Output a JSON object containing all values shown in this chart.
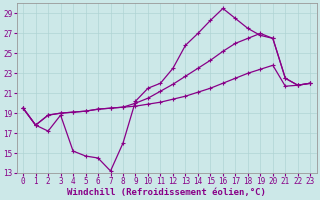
{
  "bg_color": "#cce8e8",
  "grid_color": "#b0d4d4",
  "line_color": "#880088",
  "xlabel": "Windchill (Refroidissement éolien,°C)",
  "xlabel_fontsize": 6.5,
  "tick_fontsize": 5.5,
  "xlim": [
    -0.5,
    23.5
  ],
  "ylim": [
    13,
    30
  ],
  "yticks": [
    13,
    15,
    17,
    19,
    21,
    23,
    25,
    27,
    29
  ],
  "xticks": [
    0,
    1,
    2,
    3,
    4,
    5,
    6,
    7,
    8,
    9,
    10,
    11,
    12,
    13,
    14,
    15,
    16,
    17,
    18,
    19,
    20,
    21,
    22,
    23
  ],
  "line1_x": [
    0,
    1,
    2,
    3,
    4,
    5,
    6,
    7,
    8,
    9,
    10,
    11,
    12,
    13,
    14,
    15,
    16,
    17,
    18,
    19,
    20,
    21,
    22,
    23
  ],
  "line1_y": [
    19.5,
    17.8,
    17.2,
    18.8,
    15.2,
    14.7,
    14.5,
    13.2,
    16.0,
    20.2,
    21.5,
    22.0,
    23.5,
    25.8,
    27.0,
    28.3,
    29.5,
    28.5,
    27.5,
    26.8,
    26.5,
    22.5,
    21.8,
    22.0
  ],
  "line2_x": [
    0,
    1,
    2,
    3,
    4,
    5,
    6,
    7,
    8,
    9,
    10,
    11,
    12,
    13,
    14,
    15,
    16,
    17,
    18,
    19,
    20,
    21,
    22,
    23
  ],
  "line2_y": [
    19.5,
    17.8,
    18.8,
    19.0,
    19.1,
    19.2,
    19.4,
    19.5,
    19.6,
    19.7,
    19.9,
    20.1,
    20.4,
    20.7,
    21.1,
    21.5,
    22.0,
    22.5,
    23.0,
    23.4,
    23.8,
    21.7,
    21.8,
    22.0
  ],
  "line3_x": [
    0,
    1,
    2,
    3,
    4,
    5,
    6,
    7,
    8,
    9,
    10,
    11,
    12,
    13,
    14,
    15,
    16,
    17,
    18,
    19,
    20,
    21,
    22,
    23
  ],
  "line3_y": [
    19.5,
    17.8,
    18.8,
    19.0,
    19.1,
    19.2,
    19.4,
    19.5,
    19.6,
    20.0,
    20.5,
    21.2,
    21.9,
    22.7,
    23.5,
    24.3,
    25.2,
    26.0,
    26.5,
    27.0,
    26.5,
    22.5,
    21.8,
    22.0
  ]
}
